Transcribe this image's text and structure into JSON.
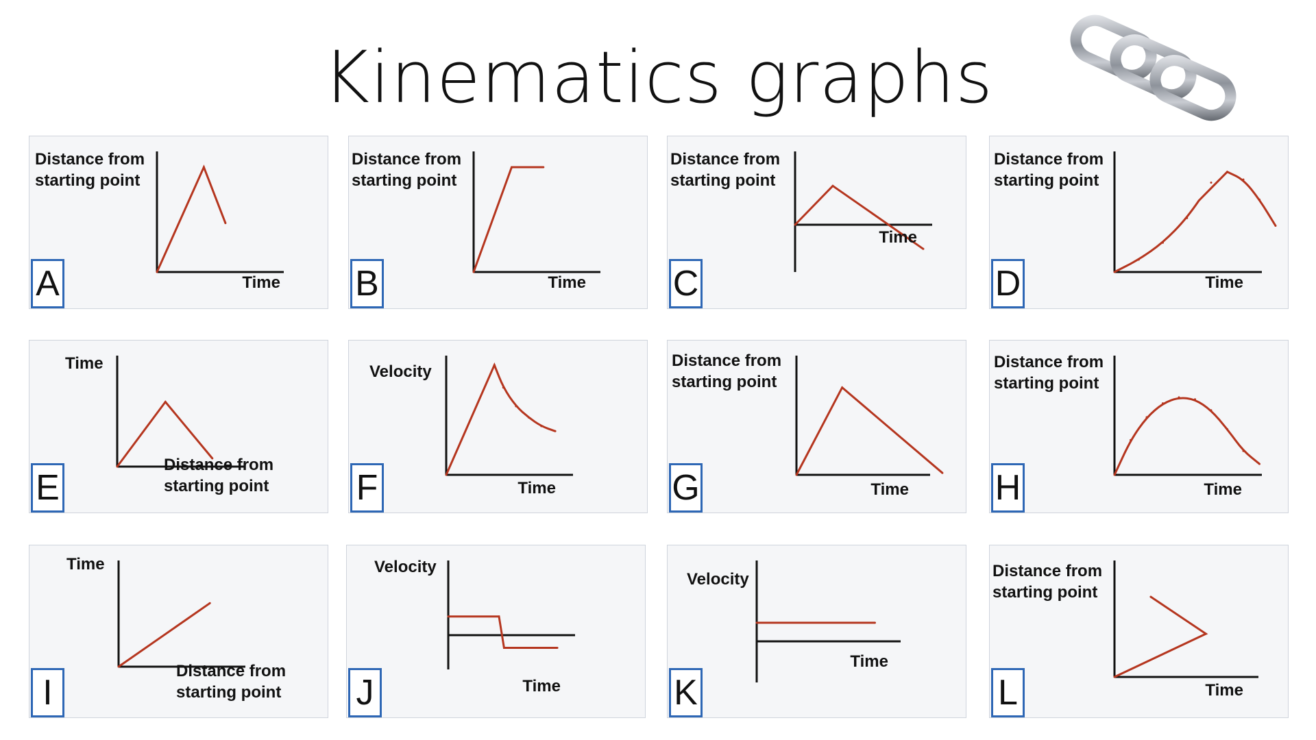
{
  "title": "Kinematics graphs",
  "logo": {
    "icon": "chain-links-icon"
  },
  "colors": {
    "axis": "#111111",
    "curve": "#b5361f",
    "letter_border": "#2e67b5",
    "panel_bg": "#f5f6f8"
  },
  "chart_data": [
    {
      "id": "A",
      "type": "line",
      "letter": "A",
      "ylabel": "Distance from\nstarting point",
      "xlabel": "Time",
      "xlim": [
        0,
        10
      ],
      "ylim": [
        0,
        10
      ],
      "x": [
        0,
        3.7,
        5.4
      ],
      "y": [
        0,
        9.0,
        4.2
      ]
    },
    {
      "id": "B",
      "type": "line",
      "letter": "B",
      "ylabel": "Distance from\nstarting point",
      "xlabel": "Time",
      "xlim": [
        0,
        10
      ],
      "ylim": [
        0,
        10
      ],
      "x": [
        0,
        3.0,
        5.5
      ],
      "y": [
        0,
        9.0,
        9.0
      ]
    },
    {
      "id": "C",
      "type": "line",
      "letter": "C",
      "ylabel": "Distance from\nstarting point",
      "xlabel": "Time",
      "xlim": [
        0,
        10
      ],
      "ylim": [
        -5,
        10
      ],
      "x": [
        0,
        2.5,
        8.5
      ],
      "y": [
        0,
        5.3,
        -3.3
      ]
    },
    {
      "id": "D",
      "type": "line",
      "letter": "D",
      "ylabel": "Distance from\nstarting point",
      "xlabel": "Time",
      "xlim": [
        0,
        10
      ],
      "ylim": [
        0,
        10
      ],
      "x": [
        0,
        1.5,
        3.0,
        4.5,
        6.0,
        7.0,
        8.0,
        9.0,
        10.0
      ],
      "y": [
        0,
        0.8,
        1.9,
        3.5,
        5.8,
        6.5,
        6.0,
        4.7,
        3.0
      ]
    },
    {
      "id": "E",
      "type": "line",
      "letter": "E",
      "ylabel": "Time",
      "xlabel": "Distance from\nstarting point",
      "xlim": [
        0,
        10
      ],
      "ylim": [
        0,
        10
      ],
      "x": [
        0,
        3.8,
        7.5
      ],
      "y": [
        0,
        6.3,
        0.8
      ]
    },
    {
      "id": "F",
      "type": "line",
      "letter": "F",
      "ylabel": "Velocity",
      "xlabel": "Time",
      "xlim": [
        0,
        10
      ],
      "ylim": [
        0,
        10
      ],
      "x": [
        0,
        3.8,
        4.5,
        5.5,
        6.5,
        7.5,
        8.6
      ],
      "y": [
        0,
        8.8,
        7.0,
        5.5,
        4.6,
        3.9,
        3.5
      ]
    },
    {
      "id": "G",
      "type": "line",
      "letter": "G",
      "ylabel": "Distance from\nstarting point",
      "xlabel": "Time",
      "xlim": [
        0,
        10
      ],
      "ylim": [
        0,
        10
      ],
      "x": [
        0,
        3.1,
        9.9
      ],
      "y": [
        0,
        9.1,
        0.2
      ]
    },
    {
      "id": "H",
      "type": "line",
      "letter": "H",
      "ylabel": "Distance from\nstarting point",
      "xlabel": "Time",
      "xlim": [
        0,
        10
      ],
      "ylim": [
        0,
        10
      ],
      "x": [
        0,
        1.0,
        2.0,
        3.0,
        4.0,
        5.0,
        6.0,
        7.0,
        8.0,
        9.0
      ],
      "y": [
        0,
        3.5,
        5.8,
        7.2,
        7.8,
        7.6,
        6.5,
        4.6,
        2.4,
        1.1
      ]
    },
    {
      "id": "I",
      "type": "line",
      "letter": "I",
      "ylabel": "Time",
      "xlabel": "Distance from\nstarting point",
      "xlim": [
        0,
        10
      ],
      "ylim": [
        0,
        10
      ],
      "x": [
        0,
        7.2
      ],
      "y": [
        0,
        7.3
      ]
    },
    {
      "id": "J",
      "type": "line",
      "letter": "J",
      "ylabel": "Velocity",
      "xlabel": "Time",
      "xlim": [
        0,
        10
      ],
      "ylim": [
        -5,
        10
      ],
      "x": [
        0,
        4.0,
        4.4,
        8.6
      ],
      "y": [
        2.5,
        2.5,
        -1.7,
        -1.7
      ]
    },
    {
      "id": "K",
      "type": "line",
      "letter": "K",
      "ylabel": "Velocity",
      "xlabel": "Time",
      "xlim": [
        0,
        10
      ],
      "ylim": [
        -5,
        10
      ],
      "x": [
        0,
        7.5
      ],
      "y": [
        2.3,
        2.3
      ]
    },
    {
      "id": "L",
      "type": "line",
      "letter": "L",
      "ylabel": "Distance from\nstarting point",
      "xlabel": "Time",
      "xlim": [
        0,
        10
      ],
      "ylim": [
        0,
        10
      ],
      "x": [
        0,
        5.8,
        2.3
      ],
      "y": [
        0,
        4.2,
        7.8
      ]
    }
  ]
}
